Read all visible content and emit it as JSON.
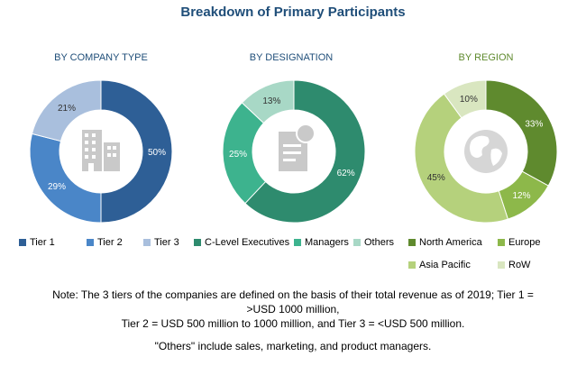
{
  "title": "Breakdown of Primary Participants",
  "chart_data": [
    {
      "type": "pie",
      "variant": "donut",
      "title": "BY COMPANY TYPE",
      "labels": [
        "Tier 1",
        "Tier 2",
        "Tier 3"
      ],
      "values": [
        50,
        29,
        21
      ],
      "value_labels": [
        "50%",
        "29%",
        "21%"
      ],
      "colors": [
        "#2e5f96",
        "#4a86c8",
        "#a9bfdd"
      ],
      "icon": "building-icon"
    },
    {
      "type": "pie",
      "variant": "donut",
      "title": "BY DESIGNATION",
      "labels": [
        "C-Level Executives",
        "Managers",
        "Others"
      ],
      "values": [
        62,
        25,
        13
      ],
      "value_labels": [
        "62%",
        "25%",
        "13%"
      ],
      "colors": [
        "#2e8b6e",
        "#3db38e",
        "#a8d8c6"
      ],
      "icon": "document-icon"
    },
    {
      "type": "pie",
      "variant": "donut",
      "title": "BY REGION",
      "labels": [
        "North America",
        "Europe",
        "Asia Pacific",
        "RoW"
      ],
      "values": [
        33,
        12,
        45,
        10
      ],
      "value_labels": [
        "33%",
        "12%",
        "45%",
        "10%"
      ],
      "colors": [
        "#5f8a2e",
        "#8db84a",
        "#b5d17c",
        "#d9e6c0"
      ],
      "icon": "globe-icon"
    }
  ],
  "notes": {
    "line1": "Note: The 3 tiers of the companies are defined on the basis of their total revenue as of 2019; Tier 1 =",
    "line2": ">USD 1000 million,",
    "line3": "Tier 2 = USD 500 million to 1000 million, and Tier 3 = <USD 500 million.",
    "line4": "\"Others\" include sales, marketing, and product managers."
  }
}
